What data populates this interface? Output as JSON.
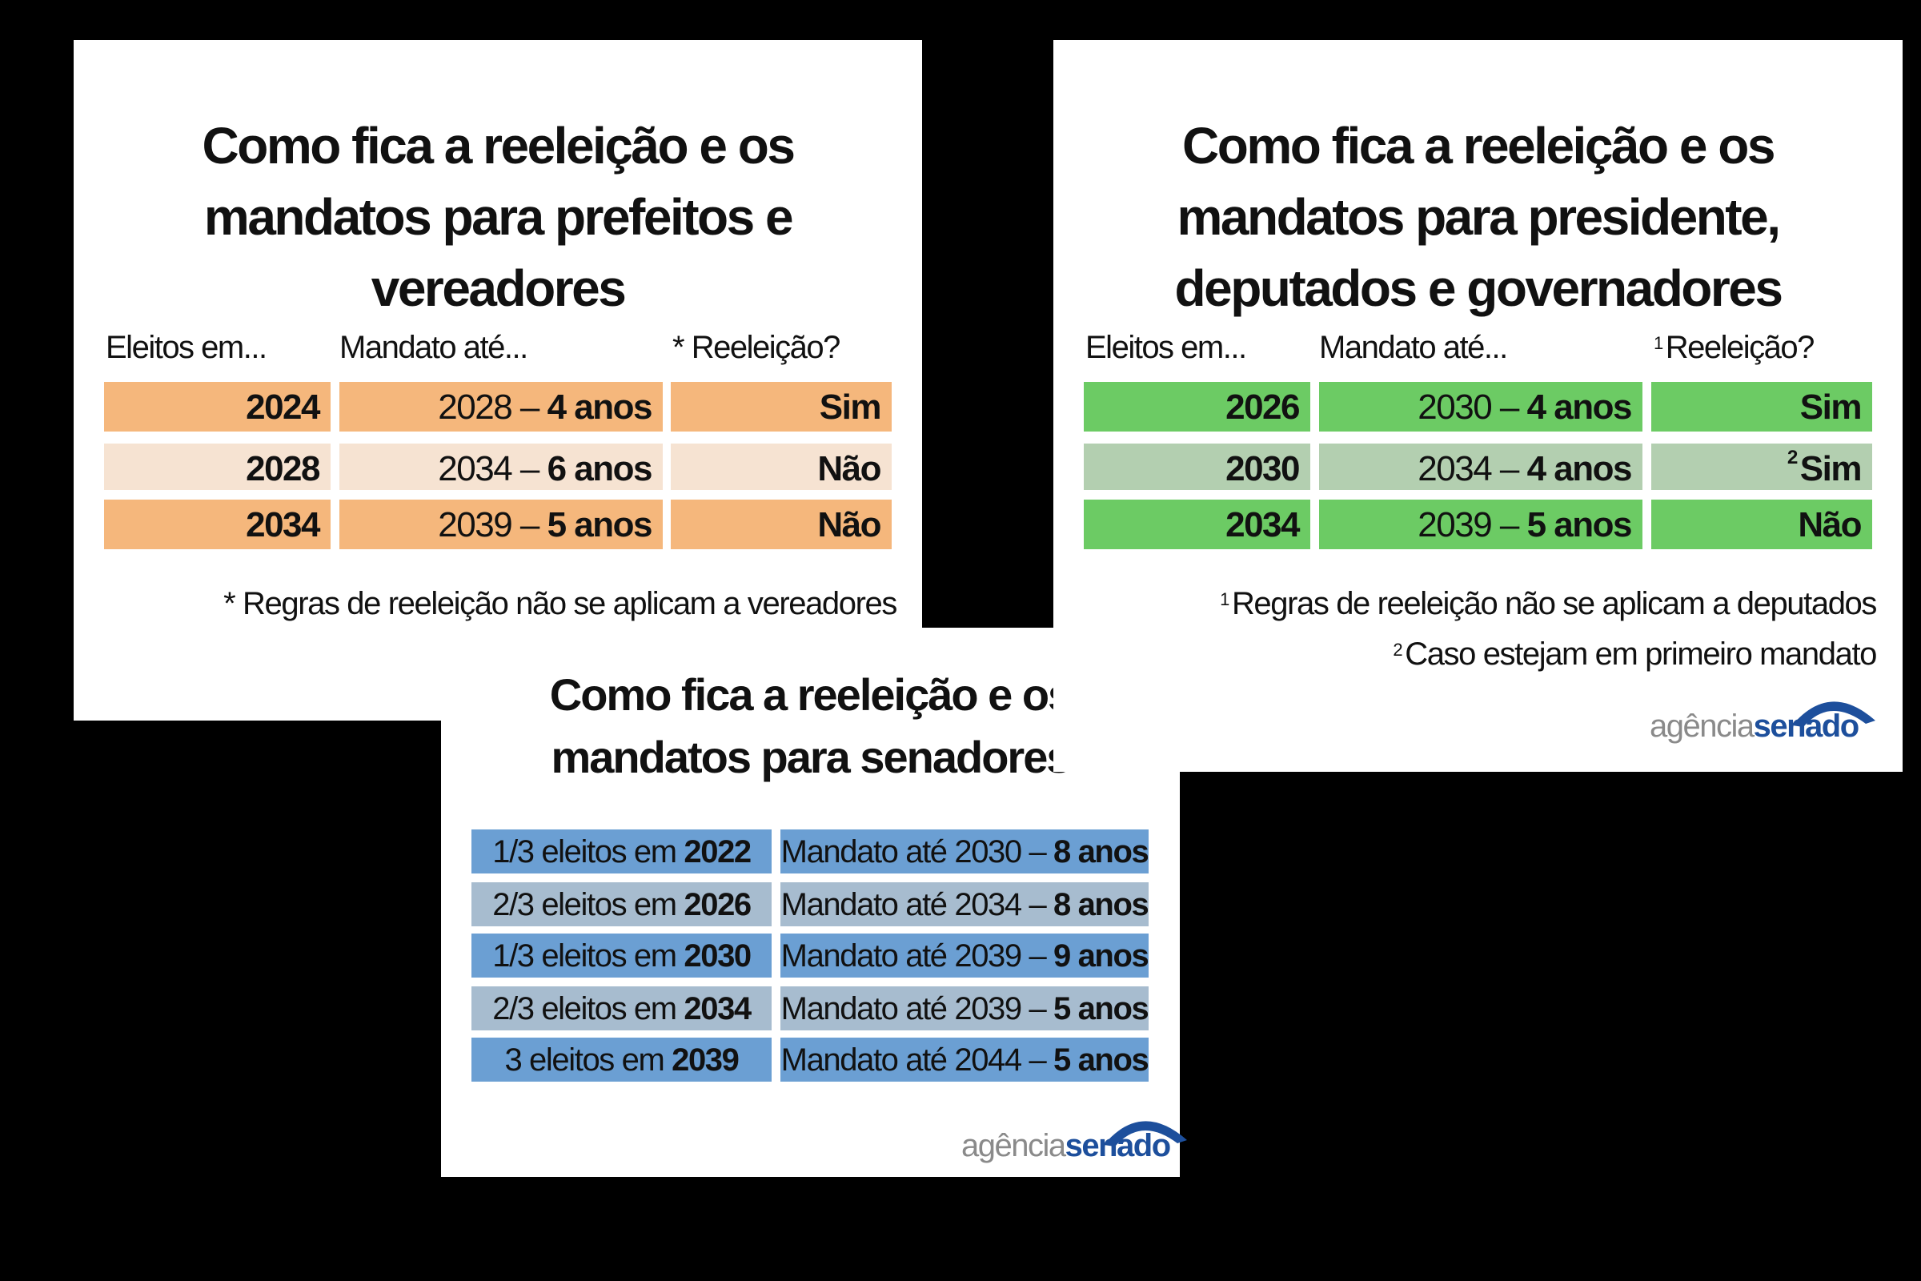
{
  "prefeitos": {
    "title": [
      "Como fica a reeleição e os",
      "mandatos para prefeitos e",
      "vereadores"
    ],
    "headers": {
      "eleitos": "Eleitos em...",
      "mandato": "Mandato até...",
      "reeleicao_mark": "*",
      "reeleicao": "Reeleição?"
    },
    "rows": [
      {
        "eleitos": "2024",
        "ate": "2028 –",
        "anos": "4 anos",
        "reeleicao": "Sim"
      },
      {
        "eleitos": "2028",
        "ate": "2034 –",
        "anos": "6 anos",
        "reeleicao": "Não"
      },
      {
        "eleitos": "2034",
        "ate": "2039 –",
        "anos": "5 anos",
        "reeleicao": "Não"
      }
    ],
    "footnote": "* Regras de reeleição não se aplicam a vereadores",
    "colors": {
      "strong": "#f5b77c",
      "light": "#f6e3d2"
    }
  },
  "presidente": {
    "title": [
      "Como fica a reeleição e os",
      "mandatos para presidente,",
      "deputados e governadores"
    ],
    "headers": {
      "eleitos": "Eleitos em...",
      "mandato": "Mandato até...",
      "reeleicao_mark": "1",
      "reeleicao": "Reeleição?"
    },
    "rows": [
      {
        "eleitos": "2026",
        "ate": "2030 –",
        "anos": "4 anos",
        "mark": "",
        "reeleicao": "Sim"
      },
      {
        "eleitos": "2030",
        "ate": "2034 –",
        "anos": "4 anos",
        "mark": "2",
        "reeleicao": "Sim"
      },
      {
        "eleitos": "2034",
        "ate": "2039 –",
        "anos": "5 anos",
        "mark": "",
        "reeleicao": "Não"
      }
    ],
    "footnotes": [
      {
        "mark": "1",
        "text": "Regras de reeleição não se aplicam a deputados"
      },
      {
        "mark": "2",
        "text": "Caso estejam em primeiro mandato"
      }
    ],
    "colors": {
      "strong": "#6ccb64",
      "light": "#b3cfb0"
    }
  },
  "senadores": {
    "title": [
      "Como fica a reeleição e os",
      "mandatos para senadores"
    ],
    "rows": [
      {
        "eleitos": "1/3 eleitos em",
        "ano": "2022",
        "mandato": "Mandato até 2030 –",
        "anos": "8 anos"
      },
      {
        "eleitos": "2/3 eleitos em",
        "ano": "2026",
        "mandato": "Mandato até 2034 –",
        "anos": "8 anos"
      },
      {
        "eleitos": "1/3 eleitos em",
        "ano": "2030",
        "mandato": "Mandato até 2039 –",
        "anos": "9 anos"
      },
      {
        "eleitos": "2/3 eleitos em",
        "ano": "2034",
        "mandato": "Mandato até 2039 –",
        "anos": "5 anos"
      },
      {
        "eleitos": "3 eleitos em",
        "ano": "2039",
        "mandato": "Mandato até 2044 –",
        "anos": "5 anos"
      }
    ],
    "colors": {
      "strong": "#6b9fd3",
      "light": "#a7bccf"
    }
  },
  "logo": {
    "part1": "agência",
    "part2": "senado",
    "color": "#1d4f9c"
  }
}
